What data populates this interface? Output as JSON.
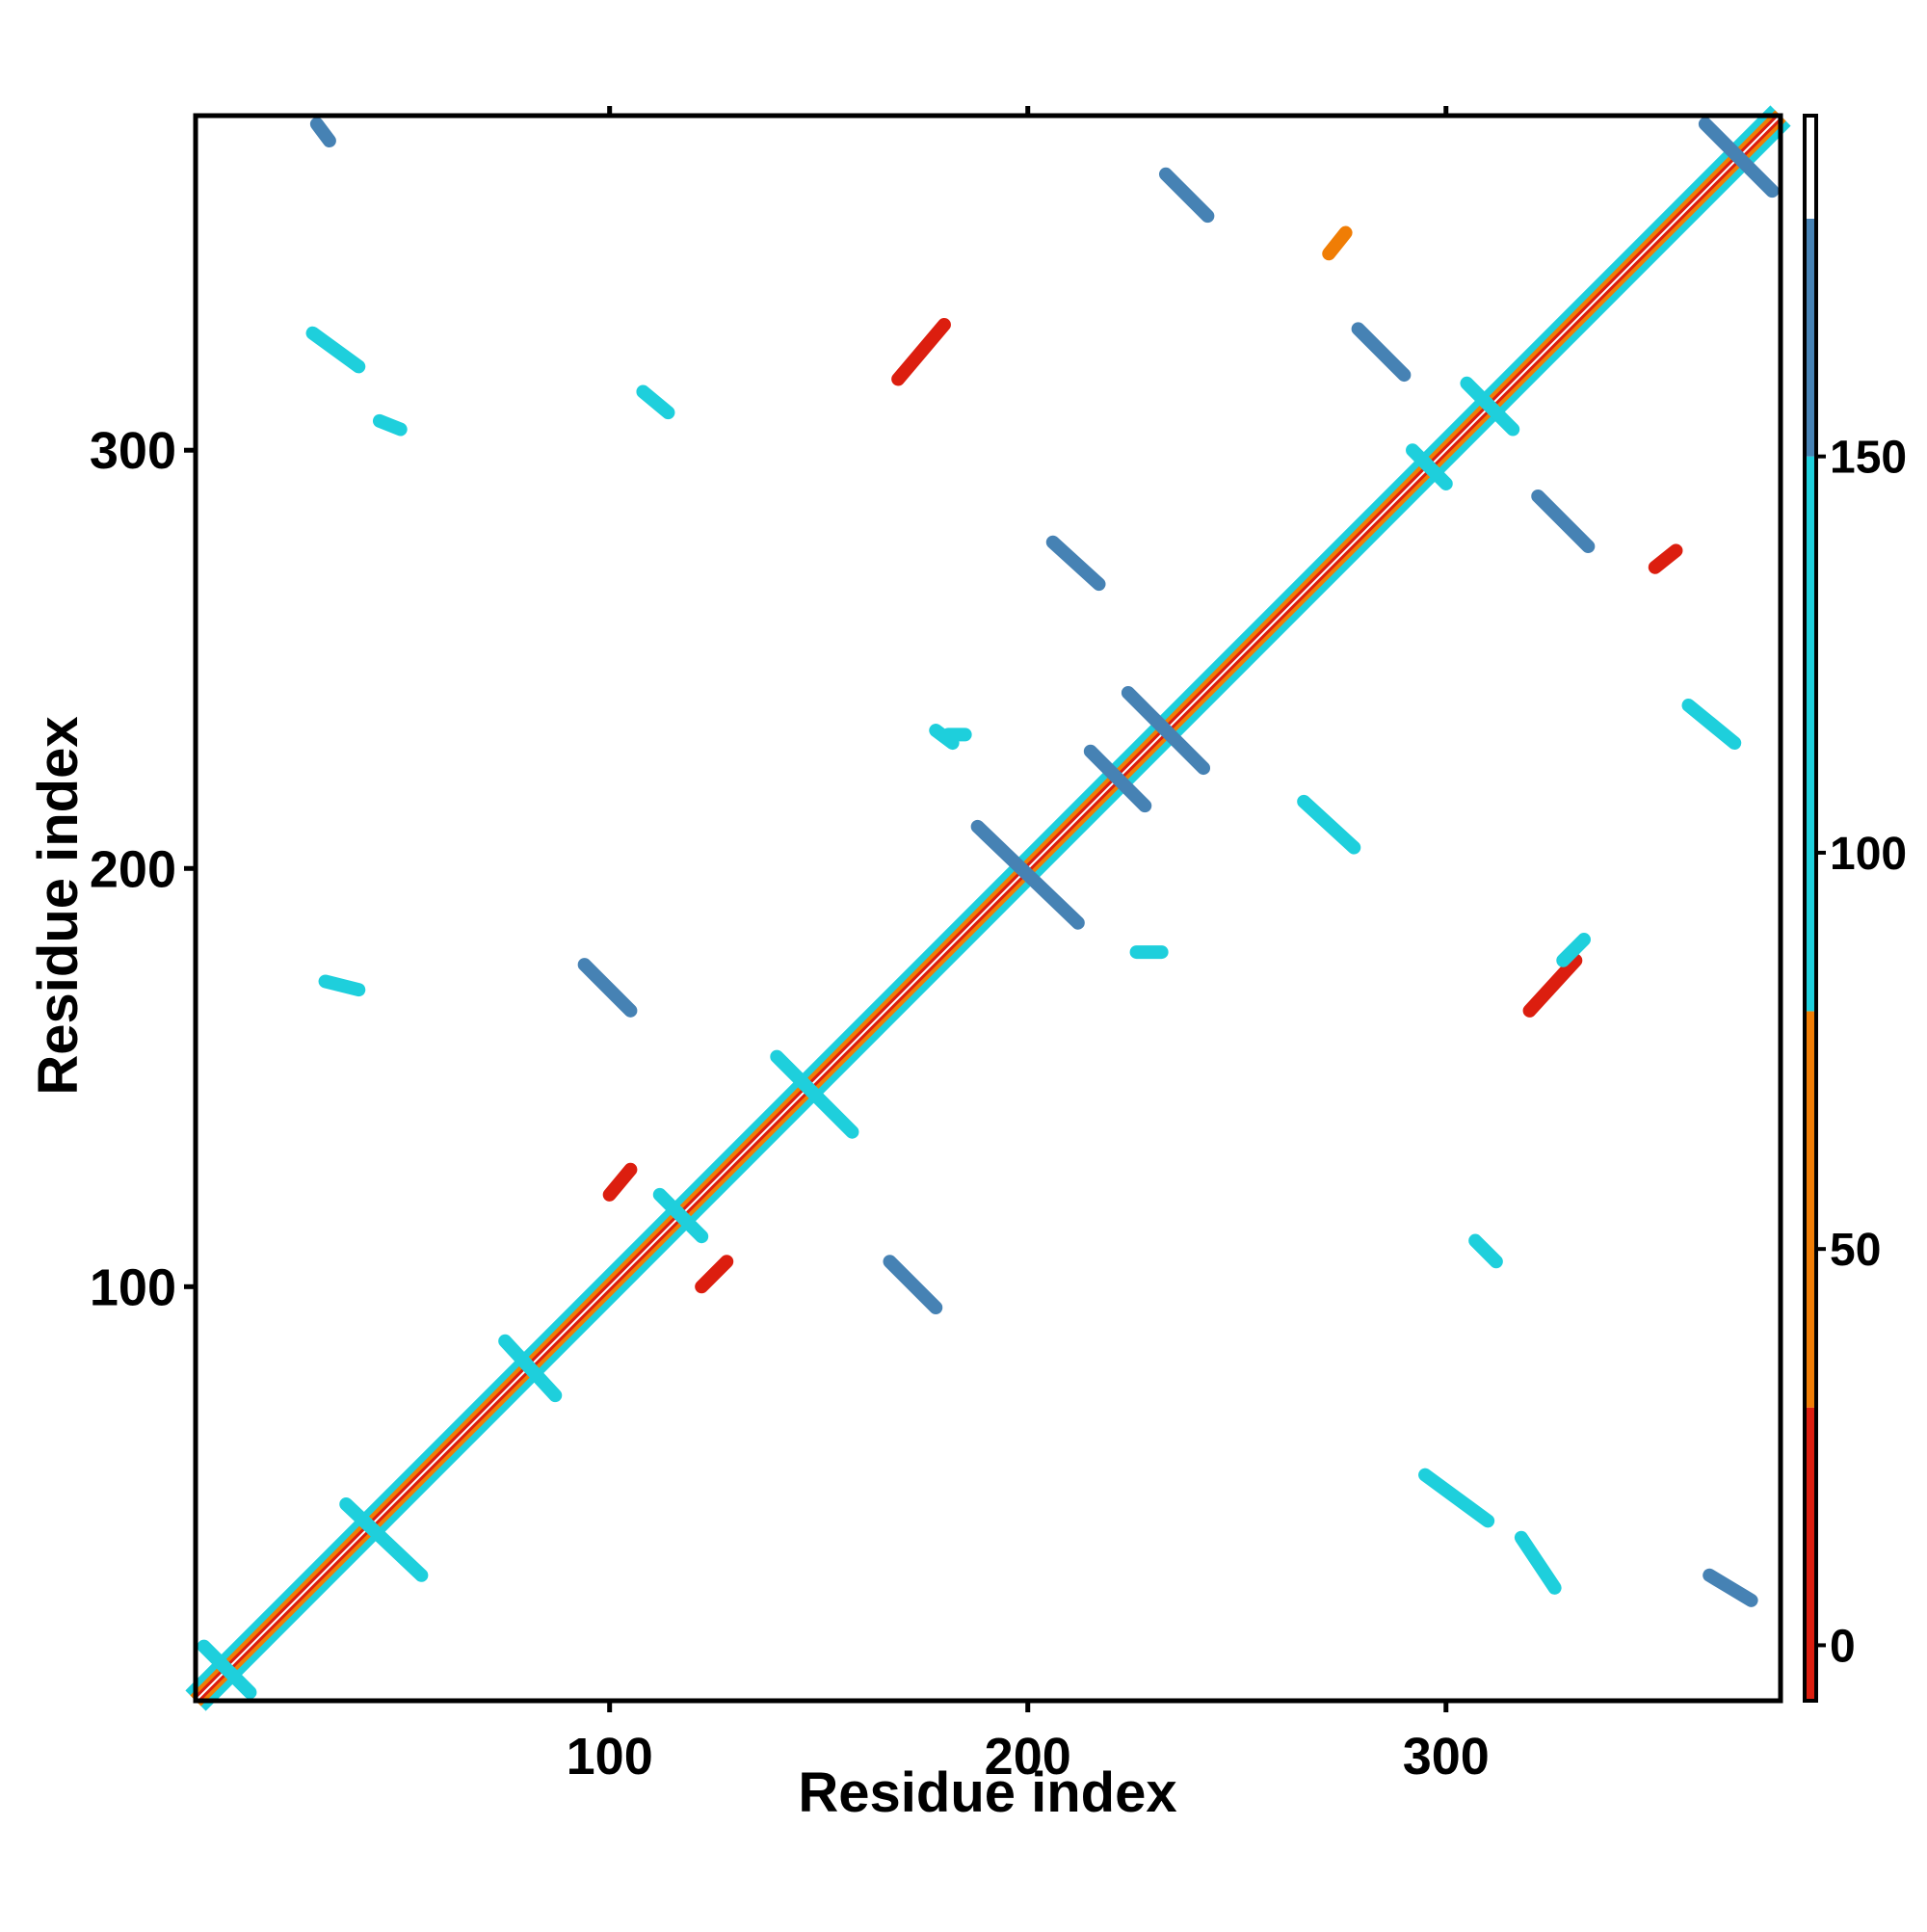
{
  "chart_data": {
    "type": "heatmap",
    "title": "",
    "xlabel": "Residue index",
    "ylabel": "Residue index",
    "xlim": [
      1,
      380
    ],
    "ylim": [
      1,
      380
    ],
    "x_ticks": [
      100,
      200,
      300
    ],
    "y_ticks": [
      100,
      200,
      300
    ],
    "grid": false,
    "colorbar": {
      "ticks": [
        0,
        50,
        100,
        150
      ],
      "range": [
        -7,
        193
      ],
      "bands": [
        {
          "from": -7,
          "to": 30,
          "color": "#dc1e0f"
        },
        {
          "from": 30,
          "to": 80,
          "color": "#f07d05"
        },
        {
          "from": 80,
          "to": 150,
          "color": "#1ecfdc"
        },
        {
          "from": 150,
          "to": 180,
          "color": "#4682b4"
        },
        {
          "from": 180,
          "to": 193,
          "color": "#ffffff"
        }
      ]
    },
    "diagonal": {
      "from": 1,
      "to": 380
    },
    "contacts": [
      {
        "x1": 30,
        "y1": 378,
        "x2": 33,
        "y2": 374,
        "color": "#4682b4"
      },
      {
        "x1": 362,
        "y1": 378,
        "x2": 378,
        "y2": 362,
        "color": "#4682b4"
      },
      {
        "x1": 233,
        "y1": 366,
        "x2": 243,
        "y2": 356,
        "color": "#4682b4"
      },
      {
        "x1": 272,
        "y1": 347,
        "x2": 276,
        "y2": 352,
        "color": "#f07d05"
      },
      {
        "x1": 169,
        "y1": 317,
        "x2": 180,
        "y2": 330,
        "color": "#dc1e0f"
      },
      {
        "x1": 279,
        "y1": 329,
        "x2": 290,
        "y2": 318,
        "color": "#4682b4"
      },
      {
        "x1": 305,
        "y1": 316,
        "x2": 316,
        "y2": 305,
        "color": "#1ecfdc"
      },
      {
        "x1": 322,
        "y1": 289,
        "x2": 334,
        "y2": 277,
        "color": "#4682b4"
      },
      {
        "x1": 292,
        "y1": 300,
        "x2": 300,
        "y2": 292,
        "color": "#1ecfdc"
      },
      {
        "x1": 350,
        "y1": 272,
        "x2": 355,
        "y2": 276,
        "color": "#dc1e0f"
      },
      {
        "x1": 206,
        "y1": 278,
        "x2": 217,
        "y2": 268,
        "color": "#4682b4"
      },
      {
        "x1": 224,
        "y1": 242,
        "x2": 242,
        "y2": 224,
        "color": "#4682b4"
      },
      {
        "x1": 215,
        "y1": 228,
        "x2": 228,
        "y2": 215,
        "color": "#4682b4"
      },
      {
        "x1": 358,
        "y1": 239,
        "x2": 369,
        "y2": 230,
        "color": "#1ecfdc"
      },
      {
        "x1": 266,
        "y1": 216,
        "x2": 278,
        "y2": 205,
        "color": "#1ecfdc"
      },
      {
        "x1": 188,
        "y1": 210,
        "x2": 212,
        "y2": 187,
        "color": "#4682b4"
      },
      {
        "x1": 94,
        "y1": 177,
        "x2": 105,
        "y2": 166,
        "color": "#4682b4"
      },
      {
        "x1": 320,
        "y1": 166,
        "x2": 331,
        "y2": 178,
        "color": "#dc1e0f"
      },
      {
        "x1": 328,
        "y1": 178,
        "x2": 333,
        "y2": 183,
        "color": "#1ecfdc"
      },
      {
        "x1": 226,
        "y1": 180,
        "x2": 232,
        "y2": 180,
        "color": "#1ecfdc"
      },
      {
        "x1": 181,
        "y1": 232,
        "x2": 185,
        "y2": 232,
        "color": "#1ecfdc"
      },
      {
        "x1": 140,
        "y1": 155,
        "x2": 158,
        "y2": 137,
        "color": "#1ecfdc"
      },
      {
        "x1": 112,
        "y1": 122,
        "x2": 122,
        "y2": 112,
        "color": "#1ecfdc"
      },
      {
        "x1": 100,
        "y1": 122,
        "x2": 105,
        "y2": 128,
        "color": "#dc1e0f"
      },
      {
        "x1": 122,
        "y1": 100,
        "x2": 128,
        "y2": 106,
        "color": "#dc1e0f"
      },
      {
        "x1": 167,
        "y1": 106,
        "x2": 178,
        "y2": 95,
        "color": "#4682b4"
      },
      {
        "x1": 307,
        "y1": 111,
        "x2": 312,
        "y2": 106,
        "color": "#1ecfdc"
      },
      {
        "x1": 37,
        "y1": 48,
        "x2": 55,
        "y2": 31,
        "color": "#1ecfdc"
      },
      {
        "x1": 75,
        "y1": 87,
        "x2": 87,
        "y2": 74,
        "color": "#1ecfdc"
      },
      {
        "x1": 3,
        "y1": 14,
        "x2": 14,
        "y2": 3,
        "color": "#1ecfdc"
      },
      {
        "x1": 363,
        "y1": 31,
        "x2": 373,
        "y2": 25,
        "color": "#4682b4"
      },
      {
        "x1": 295,
        "y1": 55,
        "x2": 310,
        "y2": 44,
        "color": "#1ecfdc"
      },
      {
        "x1": 318,
        "y1": 40,
        "x2": 326,
        "y2": 28,
        "color": "#1ecfdc"
      },
      {
        "x1": 45,
        "y1": 307,
        "x2": 50,
        "y2": 305,
        "color": "#1ecfdc"
      },
      {
        "x1": 29,
        "y1": 328,
        "x2": 40,
        "y2": 320,
        "color": "#1ecfdc"
      },
      {
        "x1": 108,
        "y1": 314,
        "x2": 114,
        "y2": 309,
        "color": "#1ecfdc"
      },
      {
        "x1": 178,
        "y1": 233,
        "x2": 182,
        "y2": 230,
        "color": "#1ecfdc"
      },
      {
        "x1": 32,
        "y1": 173,
        "x2": 40,
        "y2": 171,
        "color": "#1ecfdc"
      }
    ]
  }
}
